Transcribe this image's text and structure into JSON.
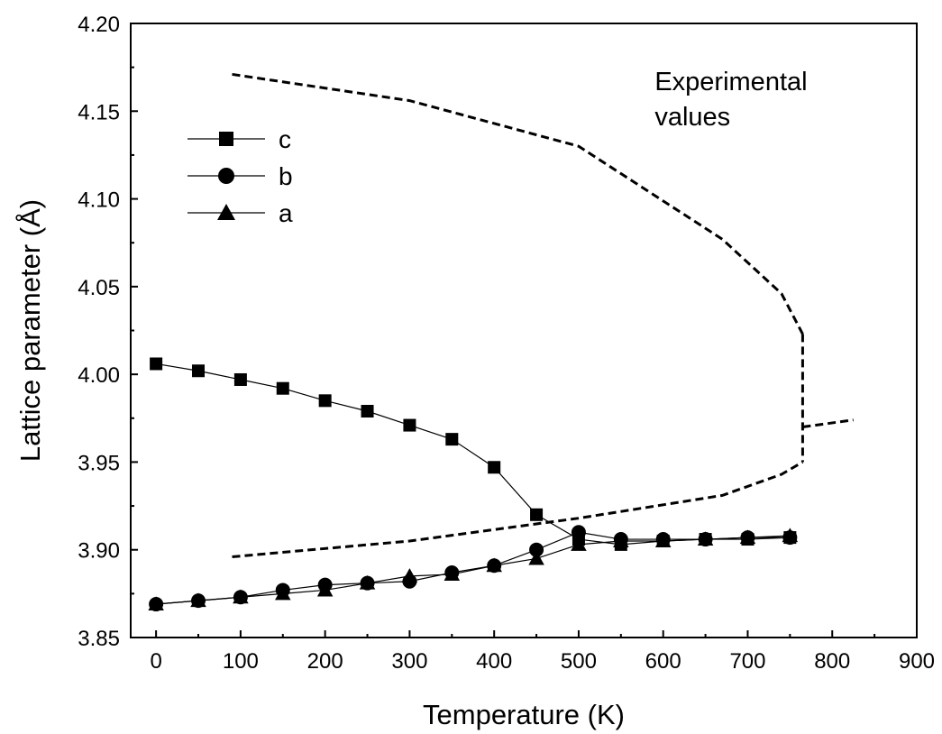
{
  "chart_data": {
    "type": "line",
    "xlabel": "Temperature (K)",
    "ylabel": "Lattice parameter (Å)",
    "xlim": [
      -30,
      900
    ],
    "ylim": [
      3.85,
      4.2
    ],
    "xticks": [
      0,
      100,
      200,
      300,
      400,
      500,
      600,
      700,
      800,
      900
    ],
    "xtick_labels": [
      "0",
      "100",
      "200",
      "300",
      "400",
      "500",
      "600",
      "700",
      "800",
      "900"
    ],
    "yticks": [
      3.85,
      3.9,
      3.95,
      4.0,
      4.05,
      4.1,
      4.15,
      4.2
    ],
    "ytick_labels": [
      "3.85",
      "3.90",
      "3.95",
      "4.00",
      "4.05",
      "4.10",
      "4.15",
      "4.20"
    ],
    "legend_position": "upper-left",
    "series": [
      {
        "name": "c",
        "marker": "square",
        "x": [
          0,
          50,
          100,
          150,
          200,
          250,
          300,
          350,
          400,
          450,
          500,
          550,
          600,
          650,
          700,
          750
        ],
        "y": [
          4.006,
          4.002,
          3.997,
          3.992,
          3.985,
          3.979,
          3.971,
          3.963,
          3.947,
          3.92,
          3.906,
          3.903,
          3.905,
          3.906,
          3.906,
          3.907
        ]
      },
      {
        "name": "b",
        "marker": "circle",
        "x": [
          0,
          50,
          100,
          150,
          200,
          250,
          300,
          350,
          400,
          450,
          500,
          550,
          600,
          650,
          700,
          750
        ],
        "y": [
          3.869,
          3.871,
          3.873,
          3.877,
          3.88,
          3.881,
          3.882,
          3.887,
          3.891,
          3.9,
          3.91,
          3.906,
          3.906,
          3.906,
          3.907,
          3.907
        ]
      },
      {
        "name": "a",
        "marker": "triangle",
        "x": [
          0,
          50,
          100,
          150,
          200,
          250,
          300,
          350,
          400,
          450,
          500,
          550,
          600,
          650,
          700,
          750
        ],
        "y": [
          3.869,
          3.871,
          3.873,
          3.875,
          3.877,
          3.881,
          3.885,
          3.886,
          3.891,
          3.895,
          3.903,
          3.905,
          3.905,
          3.906,
          3.907,
          3.908
        ]
      }
    ],
    "experimental_curves": [
      {
        "style": "dashed",
        "x": [
          90,
          300,
          500,
          670,
          740,
          765
        ],
        "y": [
          4.171,
          4.156,
          4.13,
          4.077,
          4.046,
          4.023
        ]
      },
      {
        "style": "dashed",
        "x": [
          765,
          765
        ],
        "y": [
          4.023,
          3.95
        ]
      },
      {
        "style": "dashed",
        "x": [
          90,
          300,
          500,
          670,
          740,
          765
        ],
        "y": [
          3.896,
          3.905,
          3.918,
          3.931,
          3.943,
          3.95
        ]
      },
      {
        "style": "dashed",
        "x": [
          765,
          825
        ],
        "y": [
          3.97,
          3.974
        ]
      }
    ],
    "annotations": [
      {
        "lines": [
          "Experimental",
          "values"
        ],
        "x": 590,
        "y": 4.162
      }
    ]
  }
}
